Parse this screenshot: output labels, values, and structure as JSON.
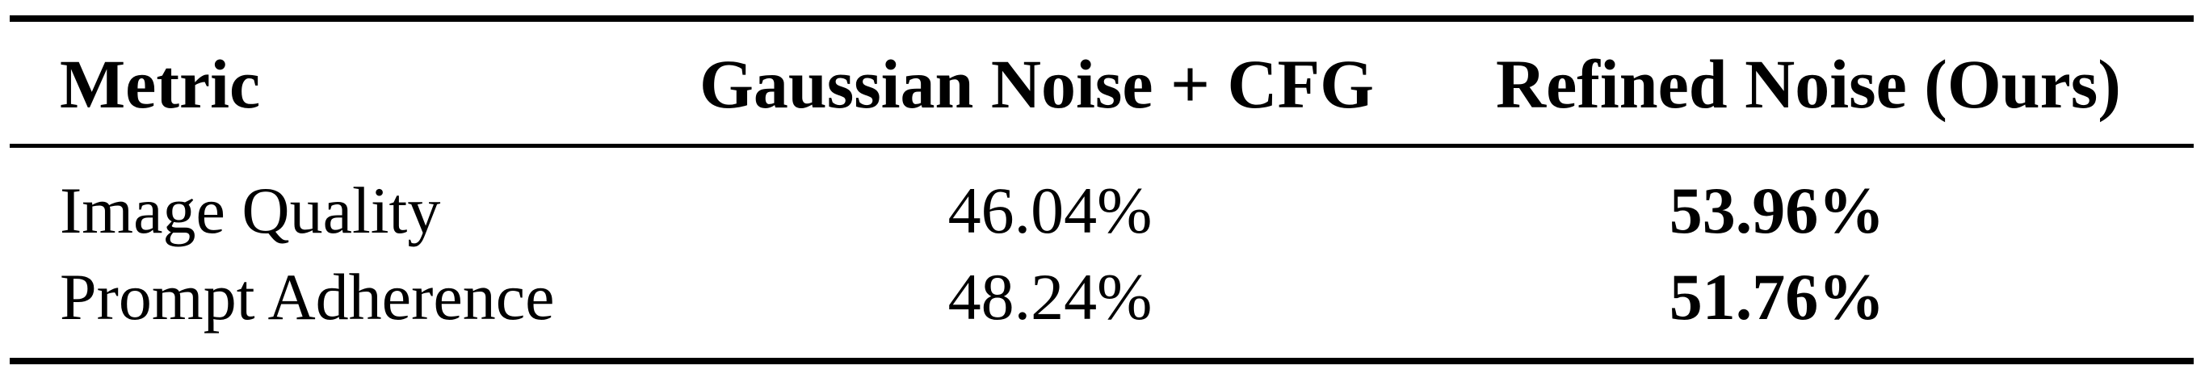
{
  "table": {
    "headers": [
      "Metric",
      "Gaussian Noise + CFG",
      "Refined Noise (Ours)"
    ],
    "rows": [
      {
        "metric": "Image Quality",
        "gaussian": "46.04%",
        "refined": "53.96%"
      },
      {
        "metric": "Prompt Adherence",
        "gaussian": "48.24%",
        "refined": "51.76%"
      }
    ]
  }
}
